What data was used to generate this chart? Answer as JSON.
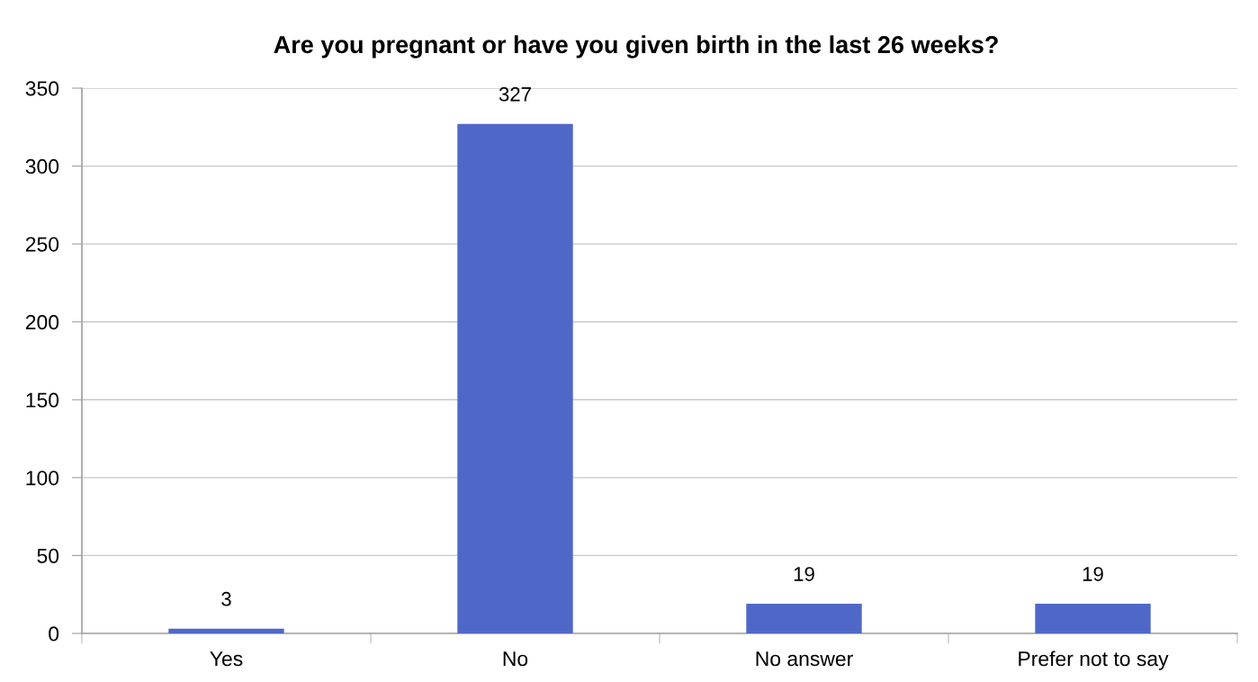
{
  "chart_data": {
    "type": "bar",
    "title": "Are you pregnant or have you given birth in the last 26 weeks?",
    "categories": [
      "Yes",
      "No",
      "No answer",
      "Prefer not to say"
    ],
    "series": [
      {
        "color": "#4f68c8",
        "values": [
          3,
          327,
          19,
          19
        ]
      }
    ],
    "ylim": [
      0,
      350
    ],
    "yticks": [
      0,
      50,
      100,
      150,
      200,
      250,
      300,
      350
    ],
    "grid": "y",
    "data_labels": true
  }
}
